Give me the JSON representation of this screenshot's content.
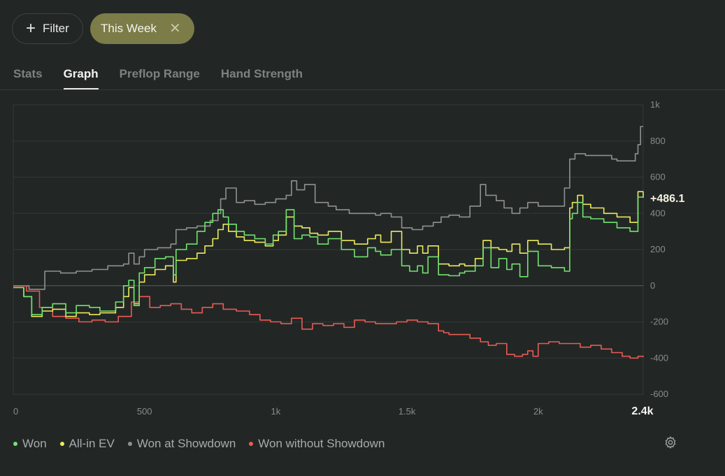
{
  "filters": {
    "add_label": "Filter",
    "active_filter": "This Week"
  },
  "tabs": [
    "Stats",
    "Graph",
    "Preflop Range",
    "Hand Strength"
  ],
  "active_tab": "Graph",
  "colors": {
    "won": "#72e36e",
    "allin_ev": "#ecea5b",
    "showdown": "#8f9190",
    "nonshowdown": "#ec5a52"
  },
  "chart_data": {
    "type": "line",
    "xlim": [
      0,
      2400
    ],
    "ylim": [
      -600,
      1000
    ],
    "x_ticks": [
      {
        "v": 0,
        "label": "0"
      },
      {
        "v": 500,
        "label": "500"
      },
      {
        "v": 1000,
        "label": "1k"
      },
      {
        "v": 1500,
        "label": "1.5k"
      },
      {
        "v": 2000,
        "label": "2k"
      }
    ],
    "x_end_label": "2.4k",
    "y_ticks": [
      {
        "v": 1000,
        "label": "1k"
      },
      {
        "v": 800,
        "label": "800"
      },
      {
        "v": 600,
        "label": "600"
      },
      {
        "v": 400,
        "label": "400"
      },
      {
        "v": 200,
        "label": "200"
      },
      {
        "v": 0,
        "label": "0"
      },
      {
        "v": -200,
        "label": "-200"
      },
      {
        "v": -400,
        "label": "-400"
      },
      {
        "v": -600,
        "label": "-600"
      }
    ],
    "final_value_label": "+486.1",
    "series": [
      {
        "name": "Won",
        "color": "#72e36e",
        "x": [
          0,
          40,
          70,
          110,
          150,
          200,
          240,
          290,
          330,
          390,
          420,
          440,
          460,
          480,
          500,
          540,
          580,
          610,
          620,
          660,
          700,
          730,
          760,
          780,
          800,
          820,
          850,
          880,
          920,
          960,
          990,
          1010,
          1040,
          1070,
          1100,
          1130,
          1160,
          1200,
          1250,
          1300,
          1350,
          1380,
          1400,
          1440,
          1480,
          1510,
          1540,
          1560,
          1580,
          1620,
          1660,
          1700,
          1720,
          1760,
          1790,
          1820,
          1850,
          1880,
          1900,
          1930,
          1960,
          2000,
          2050,
          2100,
          2120,
          2130,
          2150,
          2170,
          2200,
          2250,
          2300,
          2350,
          2380,
          2400
        ],
        "y": [
          -10,
          -60,
          -160,
          -120,
          -100,
          -150,
          -110,
          -120,
          -140,
          -90,
          0,
          30,
          -110,
          70,
          100,
          150,
          160,
          60,
          200,
          230,
          300,
          350,
          400,
          420,
          380,
          340,
          300,
          280,
          260,
          230,
          280,
          300,
          420,
          260,
          280,
          270,
          230,
          260,
          200,
          160,
          210,
          190,
          170,
          200,
          110,
          80,
          110,
          70,
          160,
          60,
          55,
          70,
          80,
          110,
          210,
          100,
          150,
          90,
          120,
          50,
          190,
          110,
          100,
          80,
          370,
          400,
          460,
          380,
          370,
          350,
          320,
          300,
          490,
          486
        ]
      },
      {
        "name": "All-in EV",
        "color": "#ecea5b",
        "x": [
          0,
          40,
          70,
          110,
          150,
          200,
          240,
          290,
          330,
          390,
          420,
          440,
          460,
          480,
          500,
          540,
          580,
          610,
          620,
          660,
          700,
          730,
          760,
          780,
          800,
          820,
          850,
          880,
          920,
          960,
          990,
          1010,
          1040,
          1070,
          1100,
          1130,
          1160,
          1200,
          1250,
          1300,
          1350,
          1380,
          1400,
          1440,
          1480,
          1510,
          1540,
          1560,
          1580,
          1620,
          1660,
          1700,
          1720,
          1760,
          1790,
          1820,
          1850,
          1880,
          1900,
          1930,
          1960,
          2000,
          2050,
          2100,
          2120,
          2130,
          2150,
          2170,
          2200,
          2250,
          2300,
          2350,
          2380,
          2400
        ],
        "y": [
          -10,
          -60,
          -170,
          -140,
          -130,
          -170,
          -150,
          -160,
          -150,
          -120,
          -60,
          -10,
          -100,
          20,
          60,
          90,
          110,
          20,
          140,
          150,
          180,
          220,
          260,
          310,
          340,
          300,
          270,
          250,
          240,
          220,
          250,
          280,
          380,
          330,
          320,
          290,
          280,
          300,
          250,
          230,
          260,
          280,
          240,
          300,
          200,
          180,
          220,
          180,
          220,
          120,
          110,
          120,
          110,
          150,
          250,
          210,
          200,
          190,
          230,
          180,
          250,
          230,
          200,
          210,
          430,
          460,
          500,
          450,
          430,
          400,
          380,
          350,
          520,
          486
        ]
      },
      {
        "name": "Won at Showdown",
        "color": "#8f9190",
        "x": [
          0,
          60,
          120,
          180,
          240,
          300,
          360,
          400,
          420,
          440,
          460,
          480,
          500,
          550,
          600,
          620,
          660,
          700,
          750,
          780,
          790,
          810,
          850,
          880,
          920,
          960,
          1000,
          1040,
          1060,
          1080,
          1110,
          1150,
          1200,
          1230,
          1280,
          1330,
          1380,
          1400,
          1440,
          1480,
          1520,
          1560,
          1600,
          1630,
          1660,
          1700,
          1740,
          1780,
          1800,
          1840,
          1870,
          1900,
          1930,
          1960,
          2000,
          2050,
          2100,
          2120,
          2140,
          2180,
          2220,
          2280,
          2300,
          2340,
          2370,
          2380,
          2390,
          2400
        ],
        "y": [
          0,
          -20,
          80,
          70,
          80,
          90,
          110,
          110,
          120,
          180,
          120,
          160,
          200,
          210,
          230,
          310,
          320,
          330,
          360,
          400,
          480,
          540,
          460,
          470,
          450,
          460,
          480,
          500,
          580,
          530,
          560,
          460,
          440,
          420,
          400,
          400,
          390,
          400,
          380,
          320,
          310,
          330,
          350,
          380,
          390,
          380,
          440,
          560,
          500,
          470,
          430,
          400,
          430,
          460,
          440,
          440,
          540,
          700,
          730,
          720,
          720,
          700,
          690,
          690,
          730,
          780,
          880,
          880
        ]
      },
      {
        "name": "Won without Showdown",
        "color": "#ec5a52",
        "x": [
          0,
          50,
          100,
          150,
          200,
          250,
          300,
          350,
          400,
          450,
          480,
          520,
          560,
          600,
          640,
          680,
          720,
          760,
          800,
          850,
          900,
          940,
          980,
          1020,
          1060,
          1100,
          1140,
          1180,
          1220,
          1260,
          1300,
          1340,
          1380,
          1420,
          1460,
          1500,
          1540,
          1580,
          1620,
          1640,
          1660,
          1700,
          1740,
          1780,
          1810,
          1840,
          1880,
          1910,
          1940,
          1960,
          1980,
          2000,
          2040,
          2080,
          2120,
          2160,
          2200,
          2240,
          2280,
          2320,
          2350,
          2380,
          2400
        ],
        "y": [
          0,
          -30,
          -120,
          -170,
          -180,
          -200,
          -190,
          -200,
          -170,
          -90,
          -60,
          -120,
          -110,
          -100,
          -130,
          -150,
          -120,
          -100,
          -130,
          -140,
          -160,
          -190,
          -200,
          -210,
          -180,
          -240,
          -210,
          -220,
          -210,
          -230,
          -190,
          -200,
          -210,
          -210,
          -200,
          -190,
          -200,
          -210,
          -250,
          -260,
          -270,
          -270,
          -290,
          -310,
          -330,
          -320,
          -380,
          -390,
          -380,
          -360,
          -390,
          -320,
          -310,
          -320,
          -320,
          -340,
          -330,
          -350,
          -370,
          -390,
          -400,
          -390,
          -395
        ]
      }
    ]
  }
}
